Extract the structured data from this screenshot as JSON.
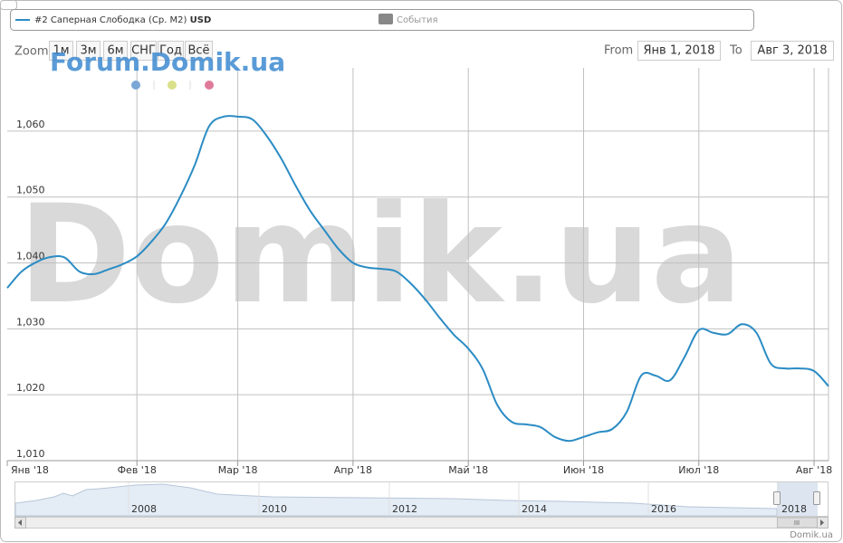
{
  "chart_data": {
    "type": "line",
    "series": [
      {
        "name": "#2 Саперная Слободка (Ср. М2)",
        "unit": "USD",
        "color": "#2b8cc4",
        "values": [
          1036.2,
          1038.7,
          1040.1,
          1040.9,
          1040.8,
          1038.7,
          1038.3,
          1039,
          1039.8,
          1041,
          1043.2,
          1046,
          1050,
          1054.8,
          1060.7,
          1062.2,
          1062.2,
          1061.8,
          1059.3,
          1055.9,
          1051.8,
          1048,
          1045,
          1042.1,
          1040,
          1039.3,
          1039.1,
          1038.7,
          1036.9,
          1034.5,
          1031.7,
          1029.1,
          1027,
          1023.9,
          1018.5,
          1015.9,
          1015.5,
          1015.1,
          1013.6,
          1013,
          1013.6,
          1014.3,
          1014.8,
          1017.4,
          1022.9,
          1022.9,
          1022.2,
          1025.7,
          1029.8,
          1029.4,
          1029.2,
          1030.7,
          1029.4,
          1024.7,
          1024,
          1024,
          1023.6,
          1021.3
        ]
      }
    ],
    "categories": [
      "Янв '18",
      null,
      null,
      null,
      null,
      null,
      null,
      null,
      null,
      "Фев '18",
      null,
      null,
      null,
      null,
      null,
      null,
      "Мар '18",
      null,
      null,
      null,
      null,
      null,
      null,
      null,
      "Апр '18",
      null,
      null,
      null,
      null,
      null,
      null,
      null,
      "Май '18",
      null,
      null,
      null,
      null,
      null,
      null,
      null,
      "Июн '18",
      null,
      null,
      null,
      null,
      null,
      null,
      null,
      "Июл '18",
      null,
      null,
      null,
      null,
      null,
      null,
      null,
      "Авг '18",
      null
    ],
    "ylim": [
      1010,
      1069.6
    ],
    "yticks": [
      {
        "value": 1010,
        "label": "1,010"
      },
      {
        "value": 1020,
        "label": "1,020"
      },
      {
        "value": 1030,
        "label": "1,030"
      },
      {
        "value": 1040,
        "label": "1,040"
      },
      {
        "value": 1050,
        "label": "1,050"
      },
      {
        "value": 1060,
        "label": "1,060"
      }
    ],
    "grid": true,
    "events_label": "События",
    "zoom_label": "Zoom",
    "zoom_buttons": [
      "1м",
      "3м",
      "6м",
      "СНГ",
      "Год",
      "Всё"
    ],
    "from_label": "From",
    "from_date": "Янв 1, 2018",
    "to_label": "To",
    "to_date": "Авг 3, 2018",
    "watermark": "Domik.ua",
    "watermark_small": "Forum.Domik.ua",
    "navigator_labels": [
      "2008",
      "2010",
      "2012",
      "2014",
      "2016",
      "2018"
    ],
    "credits": "Domik.ua"
  }
}
